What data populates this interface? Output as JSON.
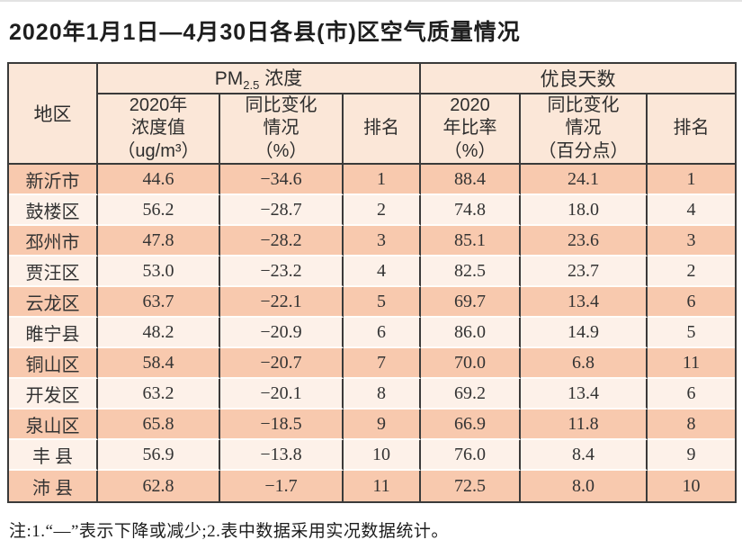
{
  "page": {
    "title": "2020年1月1日—4月30日各县(市)区空气质量情况",
    "note": "注:1.“—”表示下降或减少;2.表中数据采用实况数据统计。"
  },
  "table": {
    "corner_header": "地区",
    "pm25_group": {
      "prefix": "PM",
      "subscript": "2.5",
      "suffix": " 浓度"
    },
    "good_days_group": "优良天数",
    "sub_headers": {
      "pm25_value": "2020年\n浓度值\n（ug/m³）",
      "pm25_change": "同比变化\n情况\n（%）",
      "pm25_rank": "排名",
      "good_ratio": "2020\n年比率\n（%）",
      "good_change": "同比变化\n情况\n（百分点）",
      "good_rank": "排名"
    }
  },
  "chart_data": {
    "type": "table",
    "title": "2020年1月1日—4月30日各县(市)区空气质量情况",
    "column_groups": [
      "PM2.5浓度",
      "优良天数"
    ],
    "columns": [
      "地区",
      "2020年浓度值（ug/m³）",
      "同比变化情况（%）",
      "排名",
      "2020年比率（%）",
      "同比变化情况（百分点）",
      "排名"
    ],
    "rows": [
      [
        "新沂市",
        "44.6",
        "−34.6",
        "1",
        "88.4",
        "24.1",
        "1"
      ],
      [
        "鼓楼区",
        "56.2",
        "−28.7",
        "2",
        "74.8",
        "18.0",
        "4"
      ],
      [
        "邳州市",
        "47.8",
        "−28.2",
        "3",
        "85.1",
        "23.6",
        "3"
      ],
      [
        "贾汪区",
        "53.0",
        "−23.2",
        "4",
        "82.5",
        "23.7",
        "2"
      ],
      [
        "云龙区",
        "63.7",
        "−22.1",
        "5",
        "69.7",
        "13.4",
        "6"
      ],
      [
        "睢宁县",
        "48.2",
        "−20.9",
        "6",
        "86.0",
        "14.9",
        "5"
      ],
      [
        "铜山区",
        "58.4",
        "−20.7",
        "7",
        "70.0",
        "6.8",
        "11"
      ],
      [
        "开发区",
        "63.2",
        "−20.1",
        "8",
        "69.2",
        "13.4",
        "6"
      ],
      [
        "泉山区",
        "65.8",
        "−18.5",
        "9",
        "66.9",
        "11.8",
        "8"
      ],
      [
        "丰 县",
        "56.9",
        "−13.8",
        "10",
        "76.0",
        "8.4",
        "9"
      ],
      [
        "沛 县",
        "62.8",
        "−1.7",
        "11",
        "72.5",
        "8.0",
        "10"
      ]
    ],
    "note": "注:1.“—”表示下降或减少;2.表中数据采用实况数据统计。"
  },
  "colors": {
    "header_bg": "#fbe7d8",
    "row_odd_bg": "#f8c9ae",
    "row_even_bg": "#fdf1e9",
    "border_dark": "#3a3a3a",
    "row_separator": "#fffdfa",
    "text": "#333333"
  }
}
